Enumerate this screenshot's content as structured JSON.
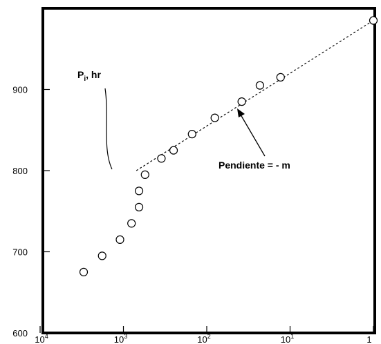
{
  "chart_data": {
    "type": "scatter",
    "title": "",
    "xlabel": "",
    "ylabel": "",
    "x_scale": "log",
    "x_reversed": true,
    "x_tick_values": [
      10000,
      1000,
      100,
      10,
      1
    ],
    "x_tick_labels": [
      {
        "base": "10",
        "exp": "4"
      },
      {
        "base": "10",
        "exp": "3"
      },
      {
        "base": "10",
        "exp": "2"
      },
      {
        "base": "10",
        "exp": "1"
      },
      {
        "base": "1",
        "exp": ""
      }
    ],
    "y_ticks": [
      600,
      700,
      800,
      900
    ],
    "ylim": [
      600,
      1000
    ],
    "series": [
      {
        "type": "scatter",
        "points": [
          {
            "x": 3000,
            "y": 675
          },
          {
            "x": 1800,
            "y": 695
          },
          {
            "x": 1100,
            "y": 715
          },
          {
            "x": 800,
            "y": 735
          },
          {
            "x": 650,
            "y": 755
          },
          {
            "x": 650,
            "y": 775
          },
          {
            "x": 550,
            "y": 795
          },
          {
            "x": 350,
            "y": 815
          },
          {
            "x": 250,
            "y": 825
          },
          {
            "x": 150,
            "y": 845
          },
          {
            "x": 80,
            "y": 865
          },
          {
            "x": 38,
            "y": 885
          },
          {
            "x": 23,
            "y": 905
          },
          {
            "x": 13,
            "y": 915
          },
          {
            "x": 1,
            "y": 985
          }
        ]
      }
    ],
    "trend_line": {
      "style": "dashed",
      "from": {
        "x": 700,
        "y": 800
      },
      "to": {
        "x": 1,
        "y": 985
      }
    },
    "annotations": {
      "pi_label": {
        "main": "P",
        "sub": "i",
        "rest": ", hr"
      },
      "slope_label": "Pendiente = - m"
    },
    "grid": false
  }
}
